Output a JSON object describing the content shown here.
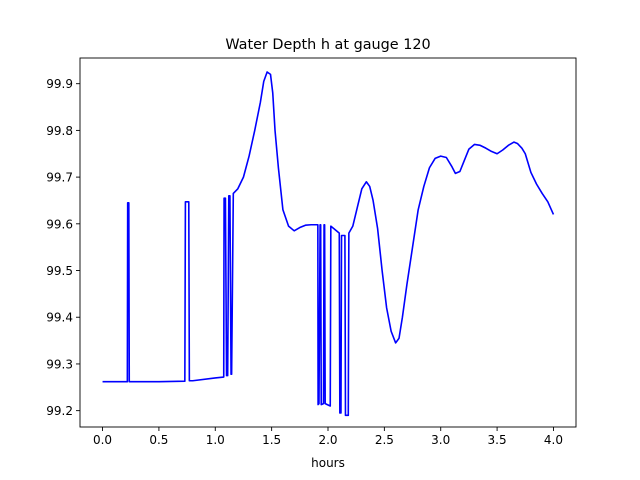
{
  "chart_data": {
    "type": "line",
    "title": "Water Depth h at gauge 120",
    "xlabel": "hours",
    "ylabel": "",
    "xlim": [
      -0.2,
      4.2
    ],
    "ylim": [
      99.165,
      99.955
    ],
    "xticks": [
      0.0,
      0.5,
      1.0,
      1.5,
      2.0,
      2.5,
      3.0,
      3.5,
      4.0
    ],
    "xtick_labels": [
      "0.0",
      "0.5",
      "1.0",
      "1.5",
      "2.0",
      "2.5",
      "3.0",
      "3.5",
      "4.0"
    ],
    "yticks": [
      99.2,
      99.3,
      99.4,
      99.5,
      99.6,
      99.7,
      99.8,
      99.9
    ],
    "ytick_labels": [
      "99.2",
      "99.3",
      "99.4",
      "99.5",
      "99.6",
      "99.7",
      "99.8",
      "99.9"
    ],
    "grid": false,
    "colors": {
      "series": "#0000ff",
      "axes": "#000000",
      "background": "#ffffff"
    },
    "series": [
      {
        "x": [
          0.0,
          0.22,
          0.223,
          0.233,
          0.237,
          0.26,
          0.5,
          0.73,
          0.735,
          0.765,
          0.77,
          0.8,
          1.0,
          1.075,
          1.078,
          1.09,
          1.1,
          1.11,
          1.12,
          1.13,
          1.14,
          1.145,
          1.16,
          1.2,
          1.25,
          1.3,
          1.35,
          1.4,
          1.43,
          1.46,
          1.49,
          1.51,
          1.53,
          1.56,
          1.6,
          1.65,
          1.7,
          1.75,
          1.8,
          1.85,
          1.89,
          1.91,
          1.912,
          1.92,
          1.93,
          1.935,
          1.94,
          1.96,
          1.965,
          1.97,
          1.975,
          2.02,
          2.025,
          2.1,
          2.105,
          2.115,
          2.12,
          2.15,
          2.155,
          2.18,
          2.185,
          2.22,
          2.26,
          2.3,
          2.34,
          2.37,
          2.4,
          2.44,
          2.48,
          2.52,
          2.56,
          2.6,
          2.63,
          2.66,
          2.7,
          2.75,
          2.8,
          2.85,
          2.9,
          2.95,
          3.0,
          3.05,
          3.1,
          3.13,
          3.17,
          3.2,
          3.25,
          3.3,
          3.35,
          3.4,
          3.45,
          3.5,
          3.55,
          3.6,
          3.65,
          3.68,
          3.72,
          3.75,
          3.8,
          3.85,
          3.9,
          3.95,
          4.0
        ],
        "y": [
          99.262,
          99.262,
          99.645,
          99.645,
          99.262,
          99.262,
          99.262,
          99.263,
          99.647,
          99.647,
          99.264,
          99.264,
          99.27,
          99.272,
          99.655,
          99.655,
          99.275,
          99.275,
          99.66,
          99.66,
          99.278,
          99.278,
          99.665,
          99.675,
          99.7,
          99.745,
          99.8,
          99.86,
          99.905,
          99.925,
          99.92,
          99.88,
          99.8,
          99.72,
          99.63,
          99.595,
          99.585,
          99.592,
          99.597,
          99.598,
          99.598,
          99.598,
          99.213,
          99.215,
          99.598,
          99.598,
          99.213,
          99.215,
          99.598,
          99.598,
          99.215,
          99.21,
          99.595,
          99.58,
          99.195,
          99.195,
          99.575,
          99.575,
          99.19,
          99.19,
          99.58,
          99.595,
          99.635,
          99.675,
          99.69,
          99.68,
          99.65,
          99.59,
          99.5,
          99.42,
          99.37,
          99.345,
          99.355,
          99.4,
          99.47,
          99.55,
          99.63,
          99.68,
          99.72,
          99.74,
          99.745,
          99.742,
          99.722,
          99.708,
          99.712,
          99.73,
          99.76,
          99.77,
          99.768,
          99.762,
          99.755,
          99.75,
          99.758,
          99.768,
          99.775,
          99.772,
          99.762,
          99.75,
          99.71,
          99.685,
          99.665,
          99.647,
          99.62
        ]
      }
    ]
  }
}
